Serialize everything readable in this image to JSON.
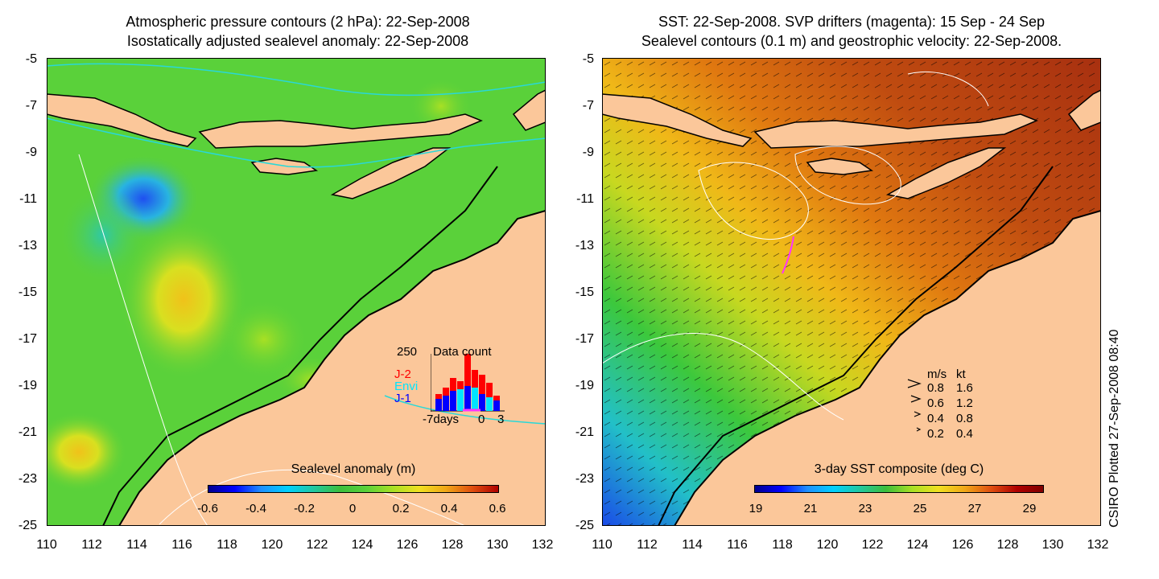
{
  "left_panel": {
    "title_line1": "Atmospheric pressure contours (2 hPa): 22-Sep-2008",
    "title_line2": "Isostatically adjusted sealevel anomaly: 22-Sep-2008",
    "colorbar": {
      "title": "Sealevel anomaly (m)",
      "ticks": [
        "-0.6",
        "-0.4",
        "-0.2",
        "0",
        "0.2",
        "0.4",
        "0.6"
      ]
    },
    "data_count": {
      "title": "Data count",
      "ymax": "250",
      "xlabel_left": "-7days",
      "xlabel_mid": "0",
      "xlabel_right": "3",
      "missions": [
        {
          "name": "J-2",
          "color": "#ff0000"
        },
        {
          "name": "Envi",
          "color": "#00e5ff"
        },
        {
          "name": "J-1",
          "color": "#0000ff"
        }
      ]
    }
  },
  "right_panel": {
    "title_line1": "SST: 22-Sep-2008. SVP drifters (magenta): 15 Sep - 24 Sep",
    "title_line2": "Sealevel contours (0.1 m) and geostrophic velocity: 22-Sep-2008.",
    "colorbar": {
      "title": "3-day SST composite (deg C)",
      "ticks": [
        "19",
        "21",
        "23",
        "25",
        "27",
        "29"
      ]
    },
    "velocity_legend": {
      "header_ms": "m/s",
      "header_kt": "kt",
      "rows": [
        {
          "ms": "0.8",
          "kt": "1.6"
        },
        {
          "ms": "0.6",
          "kt": "1.2"
        },
        {
          "ms": "0.4",
          "kt": "0.8"
        },
        {
          "ms": "0.2",
          "kt": "0.4"
        }
      ]
    }
  },
  "axes": {
    "y_ticks": [
      "-5",
      "-7",
      "-9",
      "-11",
      "-13",
      "-15",
      "-17",
      "-19",
      "-21",
      "-23",
      "-25"
    ],
    "x_ticks": [
      "110",
      "112",
      "114",
      "116",
      "118",
      "120",
      "122",
      "124",
      "126",
      "128",
      "130",
      "132"
    ]
  },
  "stamp": "CSIRO Plotted 27-Sep-2008 08:40",
  "colors": {
    "land": "#fbc79a",
    "ocean_green": "#5ad13a",
    "sst_warm": "#b23a12"
  }
}
